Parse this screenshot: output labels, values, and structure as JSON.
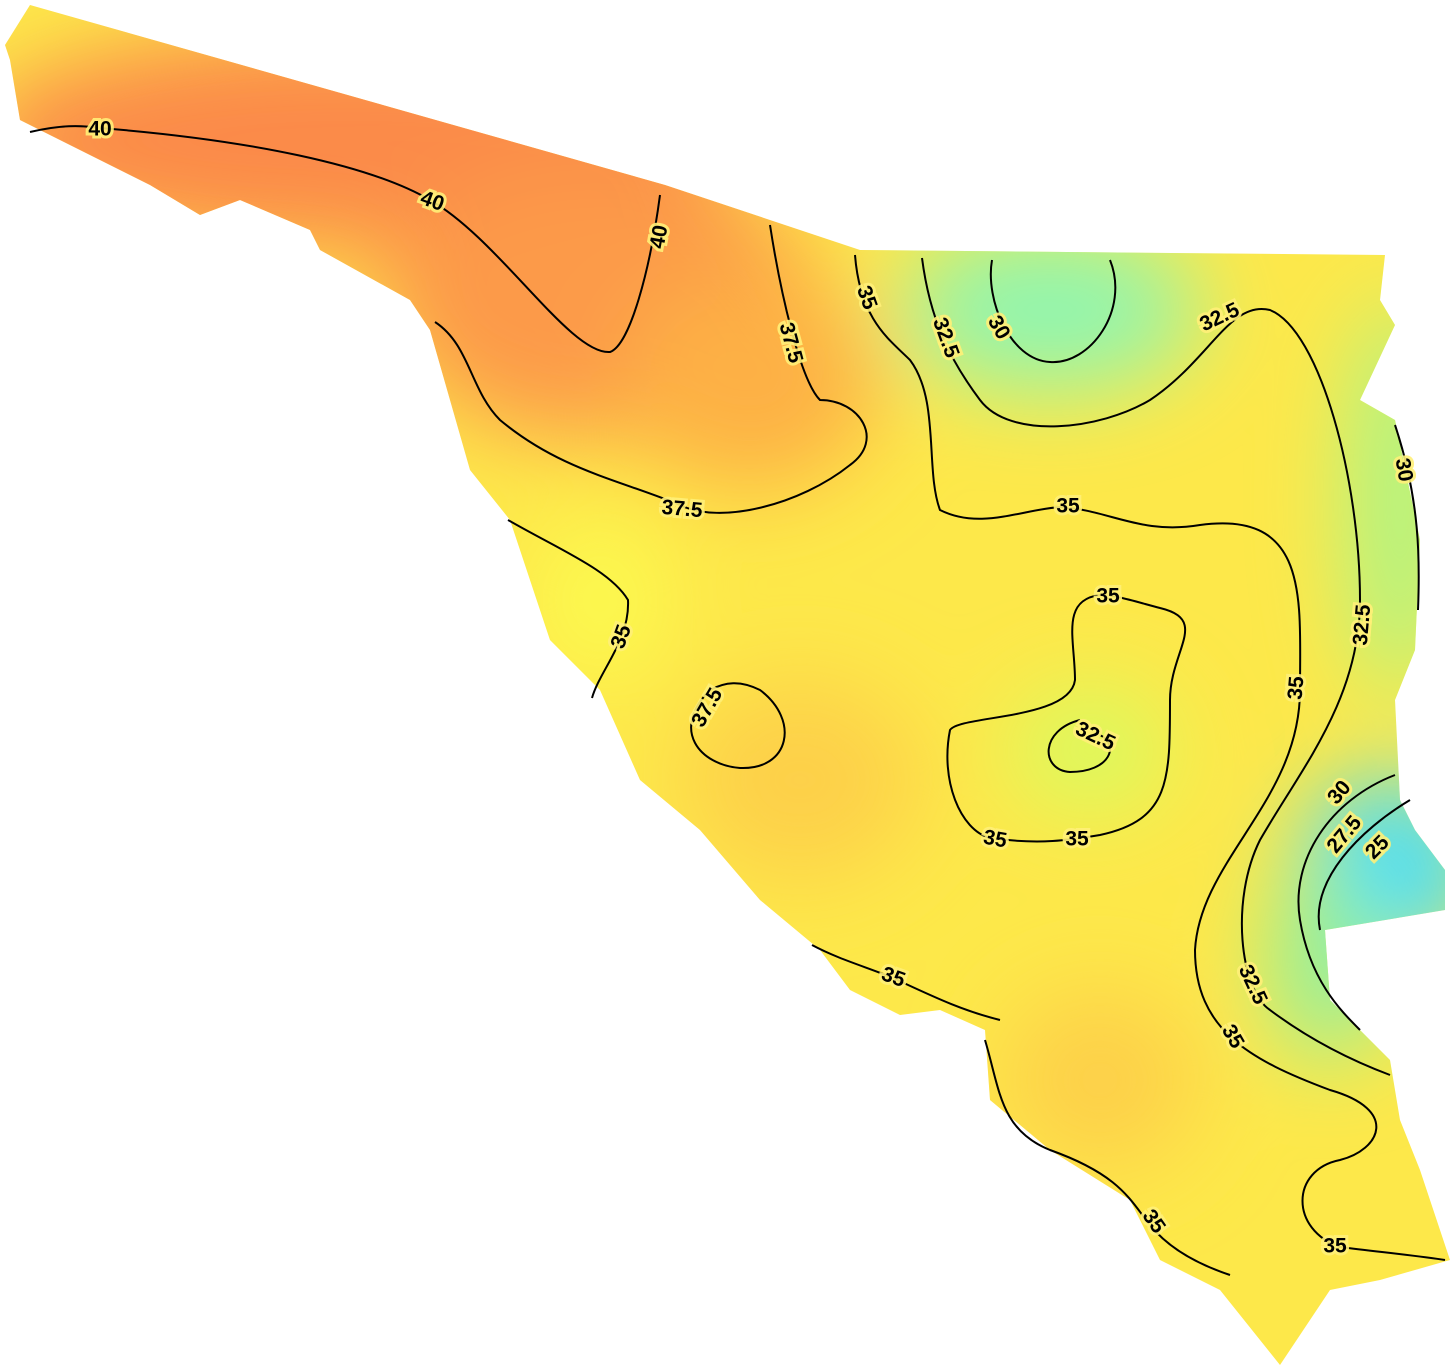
{
  "contour_labels": [
    "40",
    "40",
    "40",
    "37.5",
    "35",
    "32.5",
    "30",
    "32.5",
    "30",
    "35",
    "37.5",
    "35",
    "35",
    "32.5",
    "35",
    "37.5",
    "32.5",
    "35",
    "35",
    "30",
    "27.5",
    "25",
    "35",
    "32.5",
    "35",
    "35",
    "35"
  ]
}
